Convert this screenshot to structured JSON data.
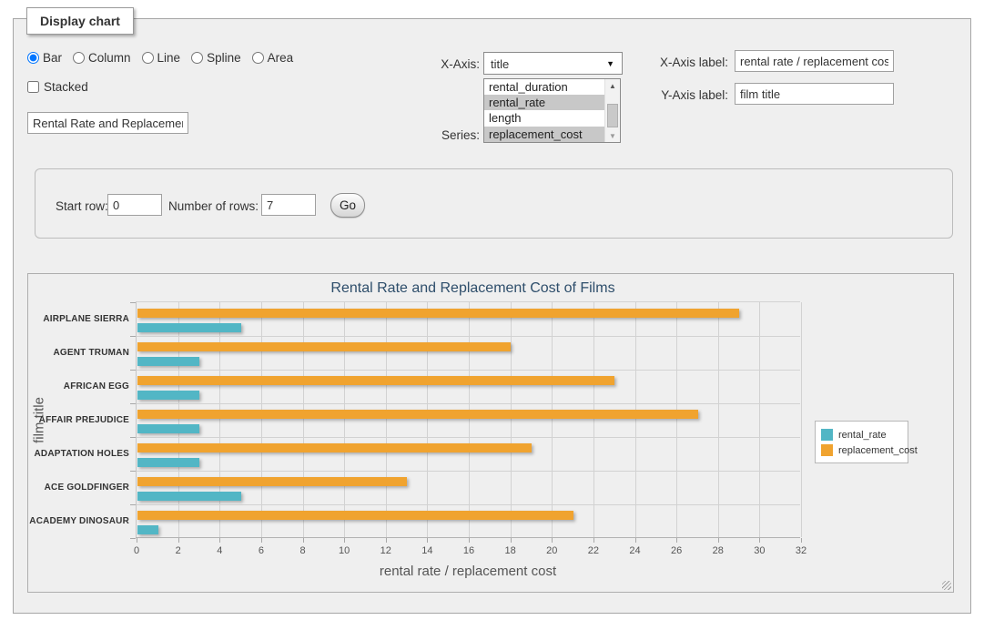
{
  "fieldset_legend": "Display chart",
  "form": {
    "chart_types": [
      {
        "label": "Bar",
        "selected": true
      },
      {
        "label": "Column",
        "selected": false
      },
      {
        "label": "Line",
        "selected": false
      },
      {
        "label": "Spline",
        "selected": false
      },
      {
        "label": "Area",
        "selected": false
      }
    ],
    "stacked": {
      "label": "Stacked",
      "checked": false
    },
    "title_input": {
      "value": "Rental Rate and Replacement Cost of Films"
    },
    "x_axis": {
      "label": "X-Axis:",
      "selected_value": "title"
    },
    "series_select": {
      "label": "Series:",
      "options": [
        {
          "label": "rental_duration",
          "selected": false
        },
        {
          "label": "rental_rate",
          "selected": true
        },
        {
          "label": "length",
          "selected": false
        },
        {
          "label": "replacement_cost",
          "selected": true
        }
      ]
    },
    "x_axis_label_field": {
      "label": "X-Axis label:",
      "value": "rental rate / replacement cost"
    },
    "y_axis_label_field": {
      "label": "Y-Axis label:",
      "value": "film title"
    }
  },
  "row_controls": {
    "start_row_label": "Start row:",
    "start_row_value": "0",
    "num_rows_label": "Number of rows:",
    "num_rows_value": "7",
    "go_label": "Go"
  },
  "chart_data": {
    "type": "bar",
    "title": "Rental Rate and Replacement Cost of Films",
    "xlabel": "rental rate / replacement cost",
    "ylabel": "film title",
    "categories": [
      "AIRPLANE SIERRA",
      "AGENT TRUMAN",
      "AFRICAN EGG",
      "AFFAIR PREJUDICE",
      "ADAPTATION HOLES",
      "ACE GOLDFINGER",
      "ACADEMY DINOSAUR"
    ],
    "series": [
      {
        "name": "rental_rate",
        "color": "#52B6C5",
        "values": [
          4.99,
          2.99,
          2.99,
          2.99,
          2.99,
          4.99,
          0.99
        ]
      },
      {
        "name": "replacement_cost",
        "color": "#F0A32F",
        "values": [
          28.99,
          17.99,
          22.99,
          26.99,
          18.99,
          12.99,
          20.99
        ]
      }
    ],
    "xlim": [
      0,
      32
    ],
    "x_tick_interval": 2,
    "grid": true,
    "legend_position": "right"
  }
}
